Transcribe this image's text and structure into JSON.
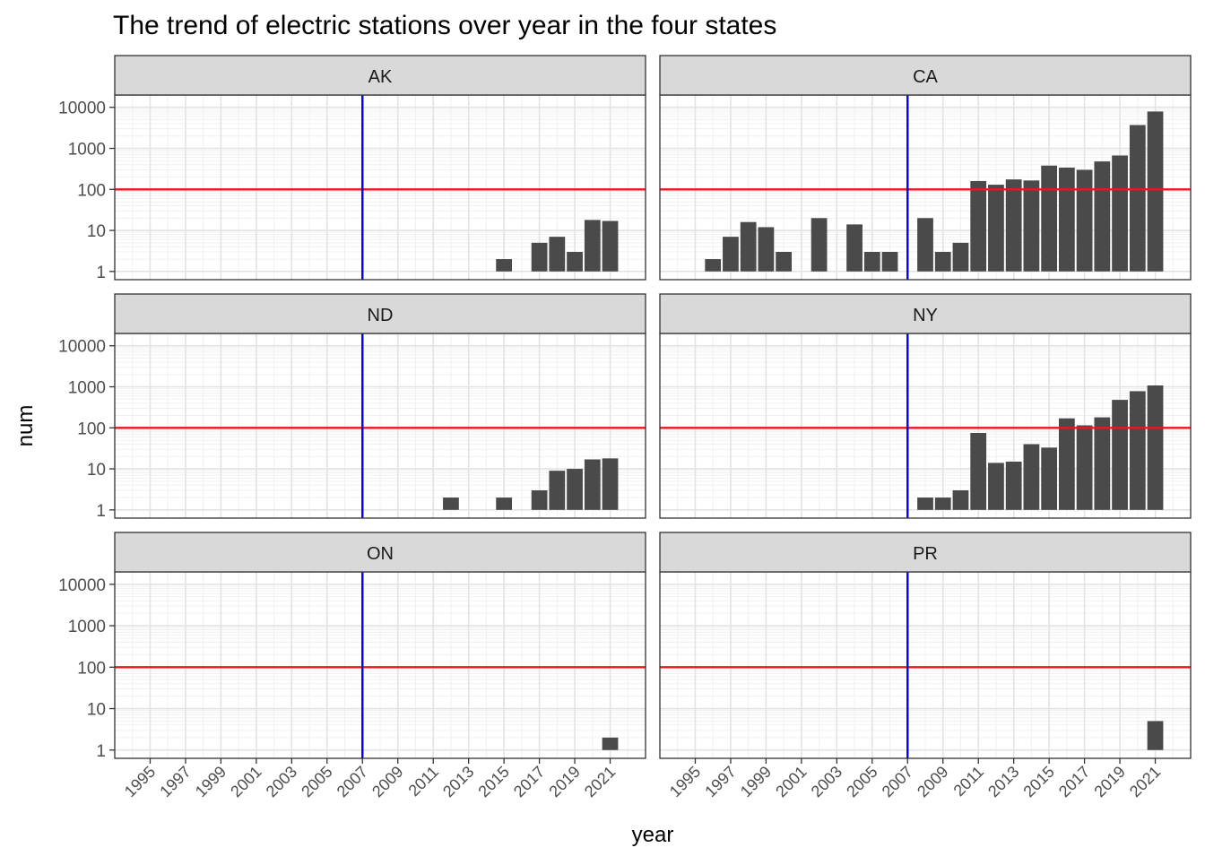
{
  "chart_data": {
    "type": "bar",
    "title": "The trend of electric stations over year in the four states",
    "xlabel": "year",
    "ylabel": "num",
    "y_scale": "log10",
    "y_ticks": [
      1,
      10,
      100,
      1000,
      10000
    ],
    "y_tick_labels": [
      "1",
      "10",
      "100",
      "1000",
      "10000"
    ],
    "x_range": [
      1993,
      2023
    ],
    "x_ticks": [
      1995,
      1997,
      1999,
      2001,
      2003,
      2005,
      2007,
      2009,
      2011,
      2013,
      2015,
      2017,
      2019,
      2021
    ],
    "x_tick_labels": [
      "1995",
      "1997",
      "1999",
      "2001",
      "2003",
      "2005",
      "2007",
      "2009",
      "2011",
      "2013",
      "2015",
      "2017",
      "2019",
      "2021"
    ],
    "reference_lines": {
      "horizontal": {
        "y": 100,
        "color": "#e41a1c"
      },
      "vertical": {
        "x": 2007,
        "color": "#0000ee"
      }
    },
    "bar_color": "#4a4a4a",
    "grid": true,
    "facets": [
      {
        "label": "AK",
        "bars": [
          {
            "year": 2015,
            "value": 2
          },
          {
            "year": 2017,
            "value": 5
          },
          {
            "year": 2018,
            "value": 7
          },
          {
            "year": 2019,
            "value": 3
          },
          {
            "year": 2020,
            "value": 18
          },
          {
            "year": 2021,
            "value": 17
          }
        ]
      },
      {
        "label": "CA",
        "bars": [
          {
            "year": 1996,
            "value": 2
          },
          {
            "year": 1997,
            "value": 7
          },
          {
            "year": 1998,
            "value": 16
          },
          {
            "year": 1999,
            "value": 12
          },
          {
            "year": 2000,
            "value": 3
          },
          {
            "year": 2002,
            "value": 20
          },
          {
            "year": 2004,
            "value": 14
          },
          {
            "year": 2005,
            "value": 3
          },
          {
            "year": 2006,
            "value": 3
          },
          {
            "year": 2008,
            "value": 20
          },
          {
            "year": 2009,
            "value": 3
          },
          {
            "year": 2010,
            "value": 5
          },
          {
            "year": 2011,
            "value": 160
          },
          {
            "year": 2012,
            "value": 130
          },
          {
            "year": 2013,
            "value": 175
          },
          {
            "year": 2014,
            "value": 165
          },
          {
            "year": 2015,
            "value": 380
          },
          {
            "year": 2016,
            "value": 340
          },
          {
            "year": 2017,
            "value": 300
          },
          {
            "year": 2018,
            "value": 480
          },
          {
            "year": 2019,
            "value": 670
          },
          {
            "year": 2020,
            "value": 3700
          },
          {
            "year": 2021,
            "value": 7900
          }
        ]
      },
      {
        "label": "ND",
        "bars": [
          {
            "year": 2012,
            "value": 2
          },
          {
            "year": 2015,
            "value": 2
          },
          {
            "year": 2017,
            "value": 3
          },
          {
            "year": 2018,
            "value": 9
          },
          {
            "year": 2019,
            "value": 10
          },
          {
            "year": 2020,
            "value": 17
          },
          {
            "year": 2021,
            "value": 18
          }
        ]
      },
      {
        "label": "NY",
        "bars": [
          {
            "year": 2008,
            "value": 2
          },
          {
            "year": 2009,
            "value": 2
          },
          {
            "year": 2010,
            "value": 3
          },
          {
            "year": 2011,
            "value": 75
          },
          {
            "year": 2012,
            "value": 14
          },
          {
            "year": 2013,
            "value": 15
          },
          {
            "year": 2014,
            "value": 40
          },
          {
            "year": 2015,
            "value": 33
          },
          {
            "year": 2016,
            "value": 170
          },
          {
            "year": 2017,
            "value": 115
          },
          {
            "year": 2018,
            "value": 180
          },
          {
            "year": 2019,
            "value": 480
          },
          {
            "year": 2020,
            "value": 780
          },
          {
            "year": 2021,
            "value": 1080
          }
        ]
      },
      {
        "label": "ON",
        "bars": [
          {
            "year": 2021,
            "value": 2
          }
        ]
      },
      {
        "label": "PR",
        "bars": [
          {
            "year": 2021,
            "value": 5
          }
        ]
      }
    ]
  }
}
